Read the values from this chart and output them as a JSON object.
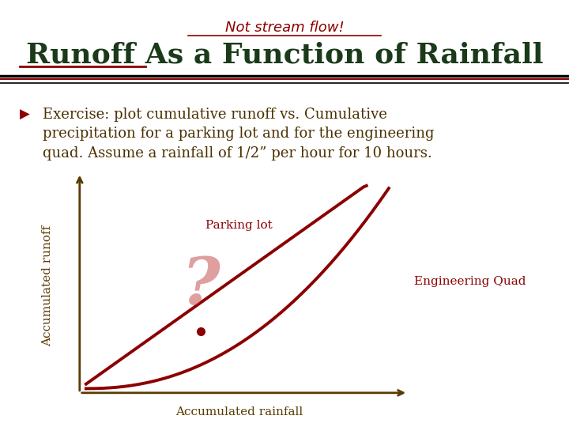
{
  "background_color": "#ffffff",
  "subtitle": "Not stream flow!",
  "subtitle_color": "#8b0000",
  "title": "Runoff As a Function of Rainfall",
  "title_color": "#1a3a1a",
  "title_underline_color": "#8b0000",
  "body_text_color": "#4a3000",
  "xlabel": "Accumulated rainfall",
  "ylabel": "Accumulated runoff",
  "label_parking": "Parking lot",
  "label_engineering": "Engineering Quad",
  "curve_color": "#8b0000",
  "axis_color": "#5a3a00",
  "dot_color": "#8b0000"
}
